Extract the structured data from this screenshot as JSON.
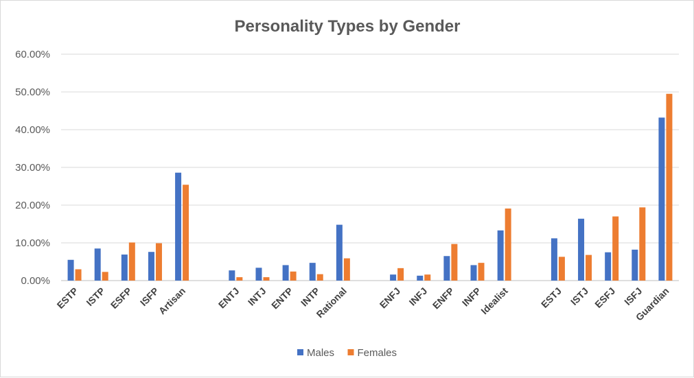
{
  "chart_data": {
    "type": "bar",
    "title": "Personality Types by Gender",
    "xlabel": "",
    "ylabel": "",
    "ylim": [
      0,
      0.6
    ],
    "yticks": [
      "0.00%",
      "10.00%",
      "20.00%",
      "30.00%",
      "40.00%",
      "50.00%",
      "60.00%"
    ],
    "grid": true,
    "legend_position": "bottom",
    "categories": [
      "ESTP",
      "ISTP",
      "ESFP",
      "ISFP",
      "Artisan",
      "",
      "ENTJ",
      "INTJ",
      "ENTP",
      "INTP",
      "Rational",
      "",
      "ENFJ",
      "INFJ",
      "ENFP",
      "INFP",
      "Idealist",
      "",
      "ESTJ",
      "ISTJ",
      "ESFJ",
      "ISFJ",
      "Guardian"
    ],
    "series": [
      {
        "name": "Males",
        "color": "#4472c4",
        "values": [
          0.055,
          0.085,
          0.069,
          0.076,
          0.286,
          null,
          0.027,
          0.034,
          0.041,
          0.047,
          0.148,
          null,
          0.016,
          0.013,
          0.065,
          0.041,
          0.133,
          null,
          0.112,
          0.164,
          0.075,
          0.082,
          0.432
        ]
      },
      {
        "name": "Females",
        "color": "#ed7d31",
        "values": [
          0.03,
          0.023,
          0.101,
          0.099,
          0.254,
          null,
          0.009,
          0.009,
          0.024,
          0.017,
          0.059,
          null,
          0.033,
          0.016,
          0.097,
          0.047,
          0.191,
          null,
          0.063,
          0.068,
          0.17,
          0.194,
          0.495
        ]
      }
    ]
  }
}
